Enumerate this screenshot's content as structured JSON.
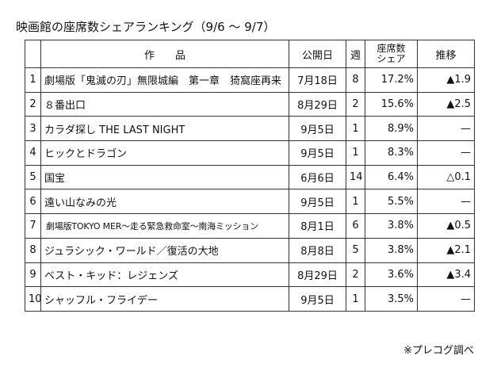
{
  "title": "映画館の座席数シェアランキング（9/6 ～ 9/7）",
  "headers": {
    "rank": "",
    "work": "作　　品",
    "release": "公開日",
    "weeks": "週",
    "share_line1": "座席数",
    "share_line2": "シェア",
    "trend": "推移"
  },
  "rows": [
    {
      "rank": "1",
      "work": "劇場版「鬼滅の刃」無限城編　第一章　猗窩座再来",
      "release": "7月18日",
      "weeks": "8",
      "share": "17.2%",
      "trend": "▲1.9"
    },
    {
      "rank": "2",
      "work": "８番出口",
      "release": "8月29日",
      "weeks": "2",
      "share": "15.6%",
      "trend": "▲2.5"
    },
    {
      "rank": "3",
      "work": "カラダ探し THE LAST NIGHT",
      "release": "9月5日",
      "weeks": "1",
      "share": "8.9%",
      "trend": "—"
    },
    {
      "rank": "4",
      "work": "ヒックとドラゴン",
      "release": "9月5日",
      "weeks": "1",
      "share": "8.3%",
      "trend": "—"
    },
    {
      "rank": "5",
      "work": "国宝",
      "release": "6月6日",
      "weeks": "14",
      "share": "6.4%",
      "trend": "△0.1"
    },
    {
      "rank": "6",
      "work": "遠い山なみの光",
      "release": "9月5日",
      "weeks": "1",
      "share": "5.5%",
      "trend": "—"
    },
    {
      "rank": "7",
      "work": "劇場版TOKYO MER～走る緊急救命室～南海ミッション",
      "release": "8月1日",
      "weeks": "6",
      "share": "3.8%",
      "trend": "▲0.5"
    },
    {
      "rank": "8",
      "work": "ジュラシック・ワールド／復活の大地",
      "release": "8月8日",
      "weeks": "5",
      "share": "3.8%",
      "trend": "▲2.1"
    },
    {
      "rank": "9",
      "work": "ベスト・キッド：レジェンズ",
      "release": "8月29日",
      "weeks": "2",
      "share": "3.6%",
      "trend": "▲3.4"
    },
    {
      "rank": "10",
      "work": "シャッフル・フライデー",
      "release": "9月5日",
      "weeks": "1",
      "share": "3.5%",
      "trend": "—"
    }
  ],
  "source": "※プレコグ調べ"
}
